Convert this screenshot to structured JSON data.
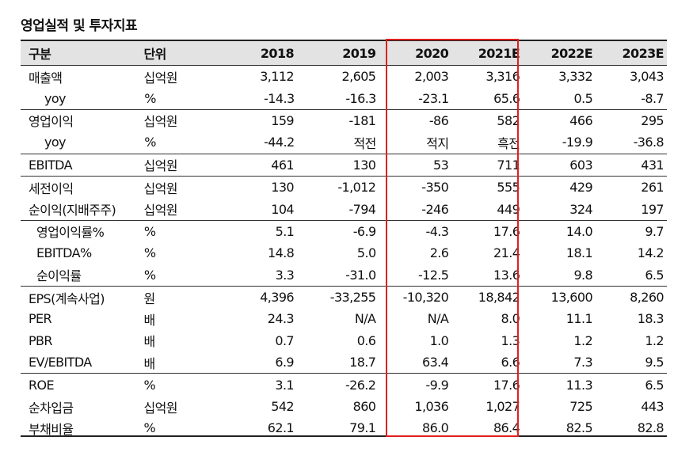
{
  "title": "영업실적 및 투자지표",
  "header": [
    "구분",
    "단위",
    "2018",
    "2019",
    "2020",
    "2021E",
    "2022E",
    "2023E"
  ],
  "rows": [
    {
      "name": "매출액",
      "unit": "십억원",
      "values": [
        "3,112",
        "2,605",
        "2,003",
        "3,316",
        "3,332",
        "3,043"
      ],
      "indent": 0,
      "sep": false
    },
    {
      "name": "yoy",
      "unit": "%",
      "values": [
        "-14.3",
        "-16.3",
        "-23.1",
        "65.6",
        "0.5",
        "-8.7"
      ],
      "indent": 1,
      "sep": false
    },
    {
      "name": "영업이익",
      "unit": "십억원",
      "values": [
        "159",
        "-181",
        "-86",
        "582",
        "466",
        "295"
      ],
      "indent": 0,
      "sep": true
    },
    {
      "name": "yoy",
      "unit": "%",
      "values": [
        "-44.2",
        "적전",
        "적지",
        "흑전",
        "-19.9",
        "-36.8"
      ],
      "indent": 1,
      "sep": false
    },
    {
      "name": "EBITDA",
      "unit": "십억원",
      "values": [
        "461",
        "130",
        "53",
        "711",
        "603",
        "431"
      ],
      "indent": 0,
      "sep": true
    },
    {
      "name": "세전이익",
      "unit": "십억원",
      "values": [
        "130",
        "-1,012",
        "-350",
        "555",
        "429",
        "261"
      ],
      "indent": 0,
      "sep": true
    },
    {
      "name": "순이익(지배주주)",
      "unit": "십억원",
      "values": [
        "104",
        "-794",
        "-246",
        "449",
        "324",
        "197"
      ],
      "indent": 0,
      "sep": false
    },
    {
      "name": "영업이익률%",
      "unit": "%",
      "values": [
        "5.1",
        "-6.9",
        "-4.3",
        "17.6",
        "14.0",
        "9.7"
      ],
      "indent": 2,
      "sep": true
    },
    {
      "name": "EBITDA%",
      "unit": "%",
      "values": [
        "14.8",
        "5.0",
        "2.6",
        "21.4",
        "18.1",
        "14.2"
      ],
      "indent": 2,
      "sep": false
    },
    {
      "name": "순이익률",
      "unit": "%",
      "values": [
        "3.3",
        "-31.0",
        "-12.5",
        "13.6",
        "9.8",
        "6.5"
      ],
      "indent": 2,
      "sep": false
    },
    {
      "name": "EPS(계속사업)",
      "unit": "원",
      "values": [
        "4,396",
        "-33,255",
        "-10,320",
        "18,842",
        "13,600",
        "8,260"
      ],
      "indent": 0,
      "sep": true
    },
    {
      "name": "PER",
      "unit": "배",
      "values": [
        "24.3",
        "N/A",
        "N/A",
        "8.0",
        "11.1",
        "18.3"
      ],
      "indent": 0,
      "sep": false
    },
    {
      "name": "PBR",
      "unit": "배",
      "values": [
        "0.7",
        "0.6",
        "1.0",
        "1.3",
        "1.2",
        "1.2"
      ],
      "indent": 0,
      "sep": false
    },
    {
      "name": "EV/EBITDA",
      "unit": "배",
      "values": [
        "6.9",
        "18.7",
        "63.4",
        "6.6",
        "7.3",
        "9.5"
      ],
      "indent": 0,
      "sep": false
    },
    {
      "name": "ROE",
      "unit": "%",
      "values": [
        "3.1",
        "-26.2",
        "-9.9",
        "17.6",
        "11.3",
        "6.5"
      ],
      "indent": 0,
      "sep": true
    },
    {
      "name": "순차입금",
      "unit": "십억원",
      "values": [
        "542",
        "860",
        "1,036",
        "1,027",
        "725",
        "443"
      ],
      "indent": 0,
      "sep": false
    },
    {
      "name": "부채비율",
      "unit": "%",
      "values": [
        "62.1",
        "79.1",
        "86.0",
        "86.4",
        "82.5",
        "82.8"
      ],
      "indent": 0,
      "sep": false
    }
  ],
  "highlight_color": "#e0201e"
}
